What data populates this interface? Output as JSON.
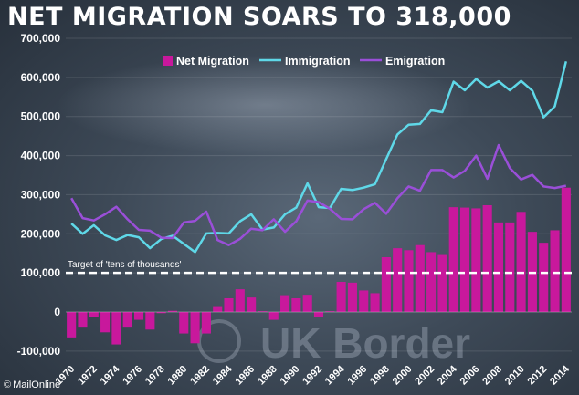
{
  "title": "NET MIGRATION SOARS TO 318,000",
  "credit": "MailOnline",
  "watermark": "UK Border",
  "colors": {
    "net": "#c8189c",
    "immigration": "#5fd8e8",
    "emigration": "#9a4fd8",
    "target": "#ffffff"
  },
  "chart_data": {
    "type": "bar+line",
    "title": "NET MIGRATION SOARS TO 318,000",
    "x": [
      1970,
      1971,
      1972,
      1973,
      1974,
      1975,
      1976,
      1977,
      1978,
      1979,
      1980,
      1981,
      1982,
      1983,
      1984,
      1985,
      1986,
      1987,
      1988,
      1989,
      1990,
      1991,
      1992,
      1993,
      1994,
      1995,
      1996,
      1997,
      1998,
      1999,
      2000,
      2001,
      2002,
      2003,
      2004,
      2005,
      2006,
      2007,
      2008,
      2009,
      2010,
      2011,
      2012,
      2013,
      2014
    ],
    "x_tick_labels": [
      "1970",
      "1972",
      "1974",
      "1976",
      "1978",
      "1980",
      "1982",
      "1984",
      "1986",
      "1988",
      "1990",
      "1992",
      "1994",
      "1996",
      "1998",
      "2000",
      "2002",
      "2004",
      "2006",
      "2008",
      "2010",
      "2012",
      "2014"
    ],
    "ylim": [
      -120000,
      720000
    ],
    "y_ticks": [
      -100000,
      0,
      100000,
      200000,
      300000,
      400000,
      500000,
      600000,
      700000
    ],
    "y_tick_labels": [
      "-100,000",
      "0",
      "100,000",
      "200,000",
      "300,000",
      "400,000",
      "500,000",
      "600,000",
      "700,000"
    ],
    "legend": {
      "position": "top",
      "labels": [
        "Net Migration",
        "Immigration",
        "Emigration"
      ]
    },
    "series": [
      {
        "name": "Net Migration",
        "type": "bar",
        "values": [
          -65000,
          -40000,
          -12000,
          -52000,
          -83000,
          -40000,
          -20000,
          -45000,
          -3000,
          3000,
          -55000,
          -80000,
          -55000,
          15000,
          35000,
          58000,
          37000,
          2000,
          -20000,
          43000,
          35000,
          44000,
          -13000,
          2000,
          77000,
          75000,
          55000,
          48000,
          140000,
          163000,
          158000,
          171000,
          153000,
          148000,
          268000,
          267000,
          265000,
          273000,
          229000,
          229000,
          256000,
          205000,
          177000,
          209000,
          318000
        ]
      },
      {
        "name": "Immigration",
        "type": "line",
        "values": [
          226000,
          200000,
          222000,
          196000,
          184000,
          197000,
          191000,
          163000,
          187000,
          195000,
          174000,
          153000,
          201000,
          202000,
          201000,
          232000,
          250000,
          211000,
          216000,
          250000,
          267000,
          329000,
          268000,
          266000,
          315000,
          312000,
          318000,
          327000,
          391000,
          454000,
          479000,
          481000,
          516000,
          511000,
          589000,
          567000,
          596000,
          574000,
          590000,
          567000,
          591000,
          566000,
          498000,
          526000,
          641000
        ]
      },
      {
        "name": "Emigration",
        "type": "line",
        "values": [
          291000,
          240000,
          234000,
          250000,
          269000,
          237000,
          210000,
          208000,
          190000,
          189000,
          229000,
          233000,
          257000,
          184000,
          171000,
          187000,
          213000,
          209000,
          237000,
          205000,
          232000,
          285000,
          281000,
          264000,
          238000,
          237000,
          263000,
          279000,
          251000,
          291000,
          321000,
          310000,
          363000,
          363000,
          344000,
          361000,
          400000,
          341000,
          427000,
          368000,
          339000,
          351000,
          321000,
          317000,
          323000
        ]
      }
    ],
    "annotations": [
      {
        "text": "Target of 'tens of thousands'",
        "y": 100000
      }
    ]
  }
}
